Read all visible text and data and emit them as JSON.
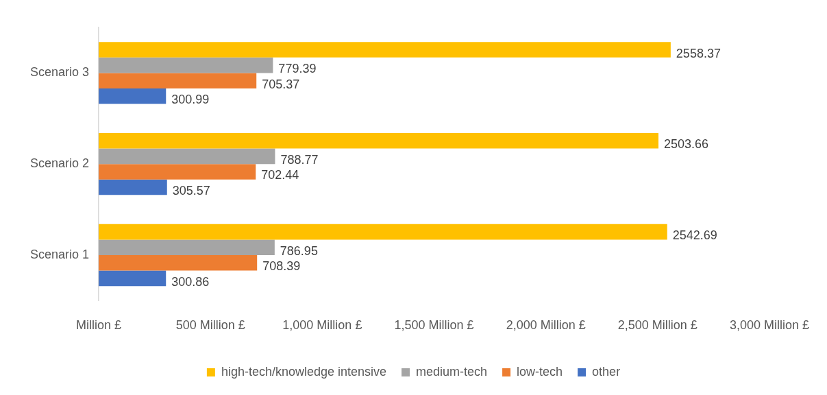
{
  "chart_data": {
    "type": "bar",
    "orientation": "horizontal",
    "categories": [
      "Scenario 3",
      "Scenario 2",
      "Scenario 1"
    ],
    "series": [
      {
        "name": "high-tech/knowledge intensive",
        "color": "#ffc000",
        "values": [
          2558.37,
          2503.66,
          2542.69
        ]
      },
      {
        "name": "medium-tech",
        "color": "#a5a5a5",
        "values": [
          779.39,
          788.77,
          786.95
        ]
      },
      {
        "name": "low-tech",
        "color": "#ed7d31",
        "values": [
          705.37,
          702.44,
          708.39
        ]
      },
      {
        "name": "other",
        "color": "#4472c4",
        "values": [
          300.99,
          305.57,
          300.86
        ]
      }
    ],
    "xlim": [
      0,
      3000
    ],
    "xticks": [
      {
        "value": 0,
        "label": "Million £"
      },
      {
        "value": 500,
        "label": "500 Million £"
      },
      {
        "value": 1000,
        "label": "1,000 Million £"
      },
      {
        "value": 1500,
        "label": "1,500 Million £"
      },
      {
        "value": 2000,
        "label": "2,000 Million £"
      },
      {
        "value": 2500,
        "label": "2,500 Million £"
      },
      {
        "value": 3000,
        "label": "3,000 Million £"
      }
    ],
    "grid": false,
    "legend": "bottom",
    "data_labels": true
  }
}
